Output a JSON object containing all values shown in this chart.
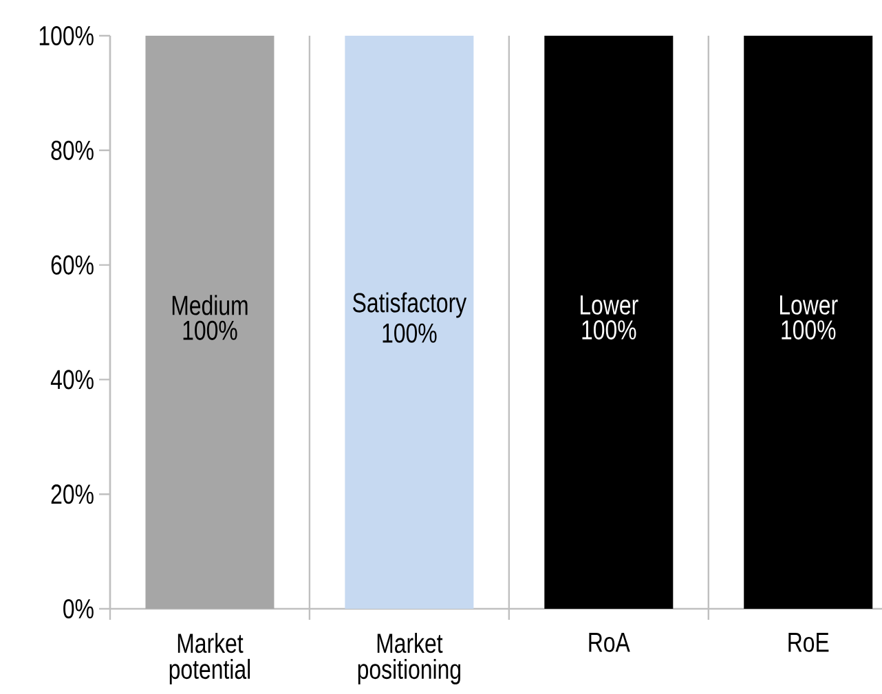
{
  "chart_data": {
    "type": "bar",
    "categories": [
      "Market potential",
      "Market positioning",
      "RoA",
      "RoE"
    ],
    "values": [
      100,
      100,
      100,
      100
    ],
    "colors": [
      "#a6a6a6",
      "#c6d9f1",
      "#000000",
      "#000000"
    ],
    "value_labels": [
      "100%",
      "100%",
      "100%",
      "100%"
    ],
    "annotations": [
      "Medium",
      "Satisfactory",
      "Lower",
      "Lower"
    ],
    "ylim": [
      0,
      100
    ],
    "yticks": [
      {
        "value": 0,
        "label": "0%"
      },
      {
        "value": 20,
        "label": "20%"
      },
      {
        "value": 40,
        "label": "40%"
      },
      {
        "value": 60,
        "label": "60%"
      },
      {
        "value": 80,
        "label": "80%"
      },
      {
        "value": 100,
        "label": "100%"
      }
    ],
    "grid": "x"
  }
}
